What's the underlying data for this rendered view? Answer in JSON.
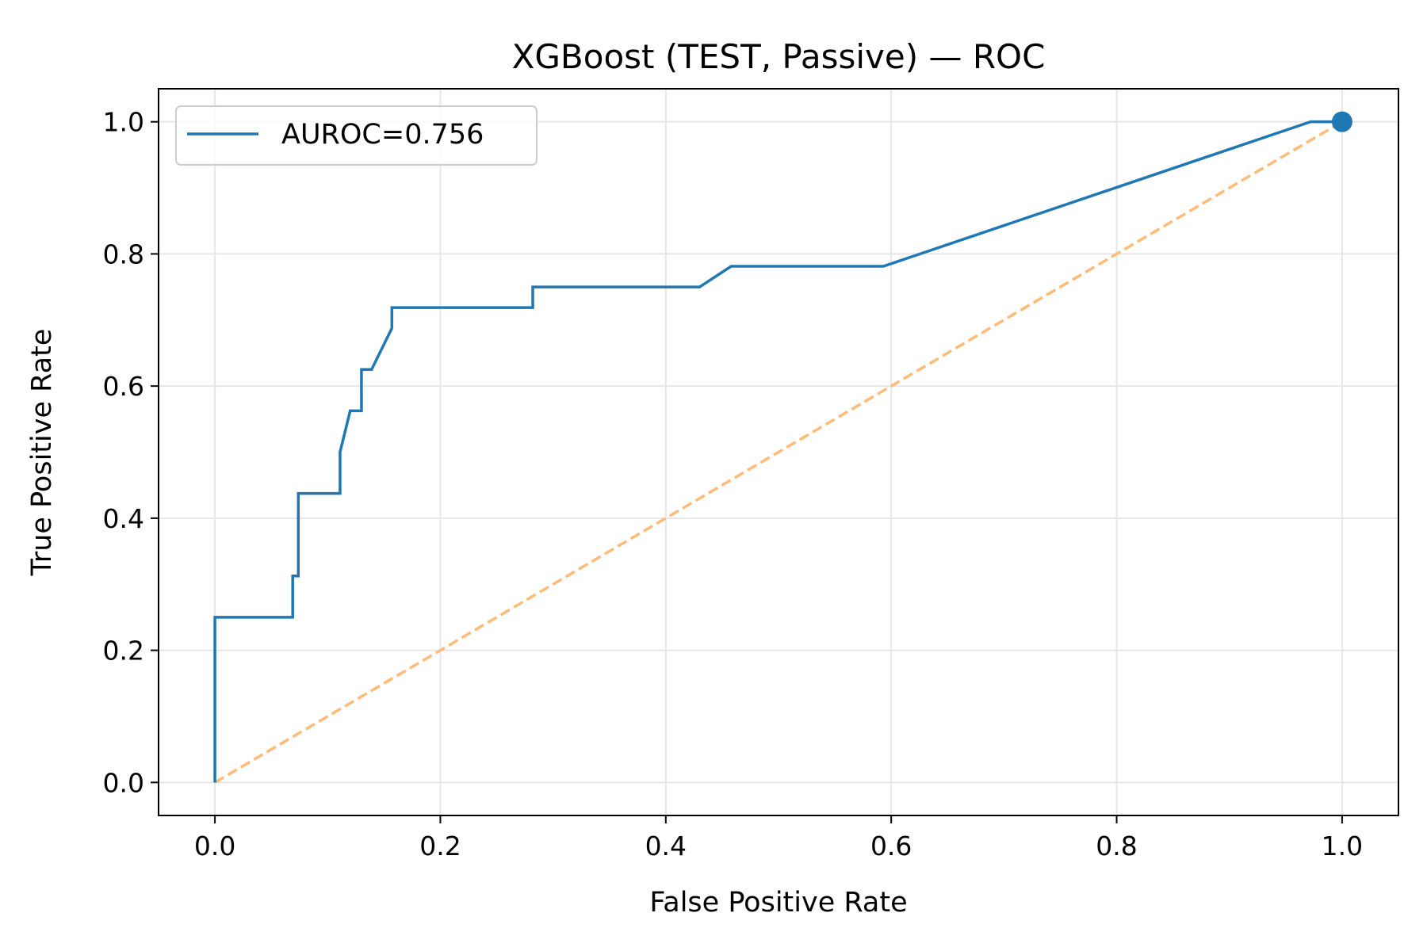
{
  "chart_data": {
    "type": "line",
    "title": "XGBoost (TEST, Passive) — ROC",
    "xlabel": "False Positive Rate",
    "ylabel": "True Positive Rate",
    "xlim": [
      -0.05,
      1.05
    ],
    "ylim": [
      -0.05,
      1.05
    ],
    "xticks": [
      0.0,
      0.2,
      0.4,
      0.6,
      0.8,
      1.0
    ],
    "xtick_labels": [
      "0.0",
      "0.2",
      "0.4",
      "0.6",
      "0.8",
      "1.0"
    ],
    "yticks": [
      0.0,
      0.2,
      0.4,
      0.6,
      0.8,
      1.0
    ],
    "ytick_labels": [
      "0.0",
      "0.2",
      "0.4",
      "0.6",
      "0.8",
      "1.0"
    ],
    "grid": true,
    "legend_position": "top-left",
    "series": [
      {
        "name": "AUROC=0.756",
        "color": "#1f77b4",
        "style": "solid",
        "x": [
          0.0,
          0.0,
          0.069,
          0.069,
          0.074,
          0.074,
          0.111,
          0.111,
          0.12,
          0.13,
          0.13,
          0.139,
          0.157,
          0.157,
          0.282,
          0.282,
          0.43,
          0.458,
          0.593,
          0.972,
          1.0
        ],
        "y": [
          0.0,
          0.25,
          0.25,
          0.3125,
          0.3125,
          0.4375,
          0.4375,
          0.5,
          0.5625,
          0.5625,
          0.625,
          0.625,
          0.6875,
          0.71875,
          0.71875,
          0.75,
          0.75,
          0.78125,
          0.78125,
          1.0,
          1.0
        ]
      },
      {
        "name": "",
        "color": "#ffbb78",
        "style": "dashed",
        "x": [
          0.0,
          1.0
        ],
        "y": [
          0.0,
          1.0
        ]
      }
    ],
    "marker": {
      "x": 1.0,
      "y": 1.0,
      "color": "#1f77b4"
    }
  }
}
